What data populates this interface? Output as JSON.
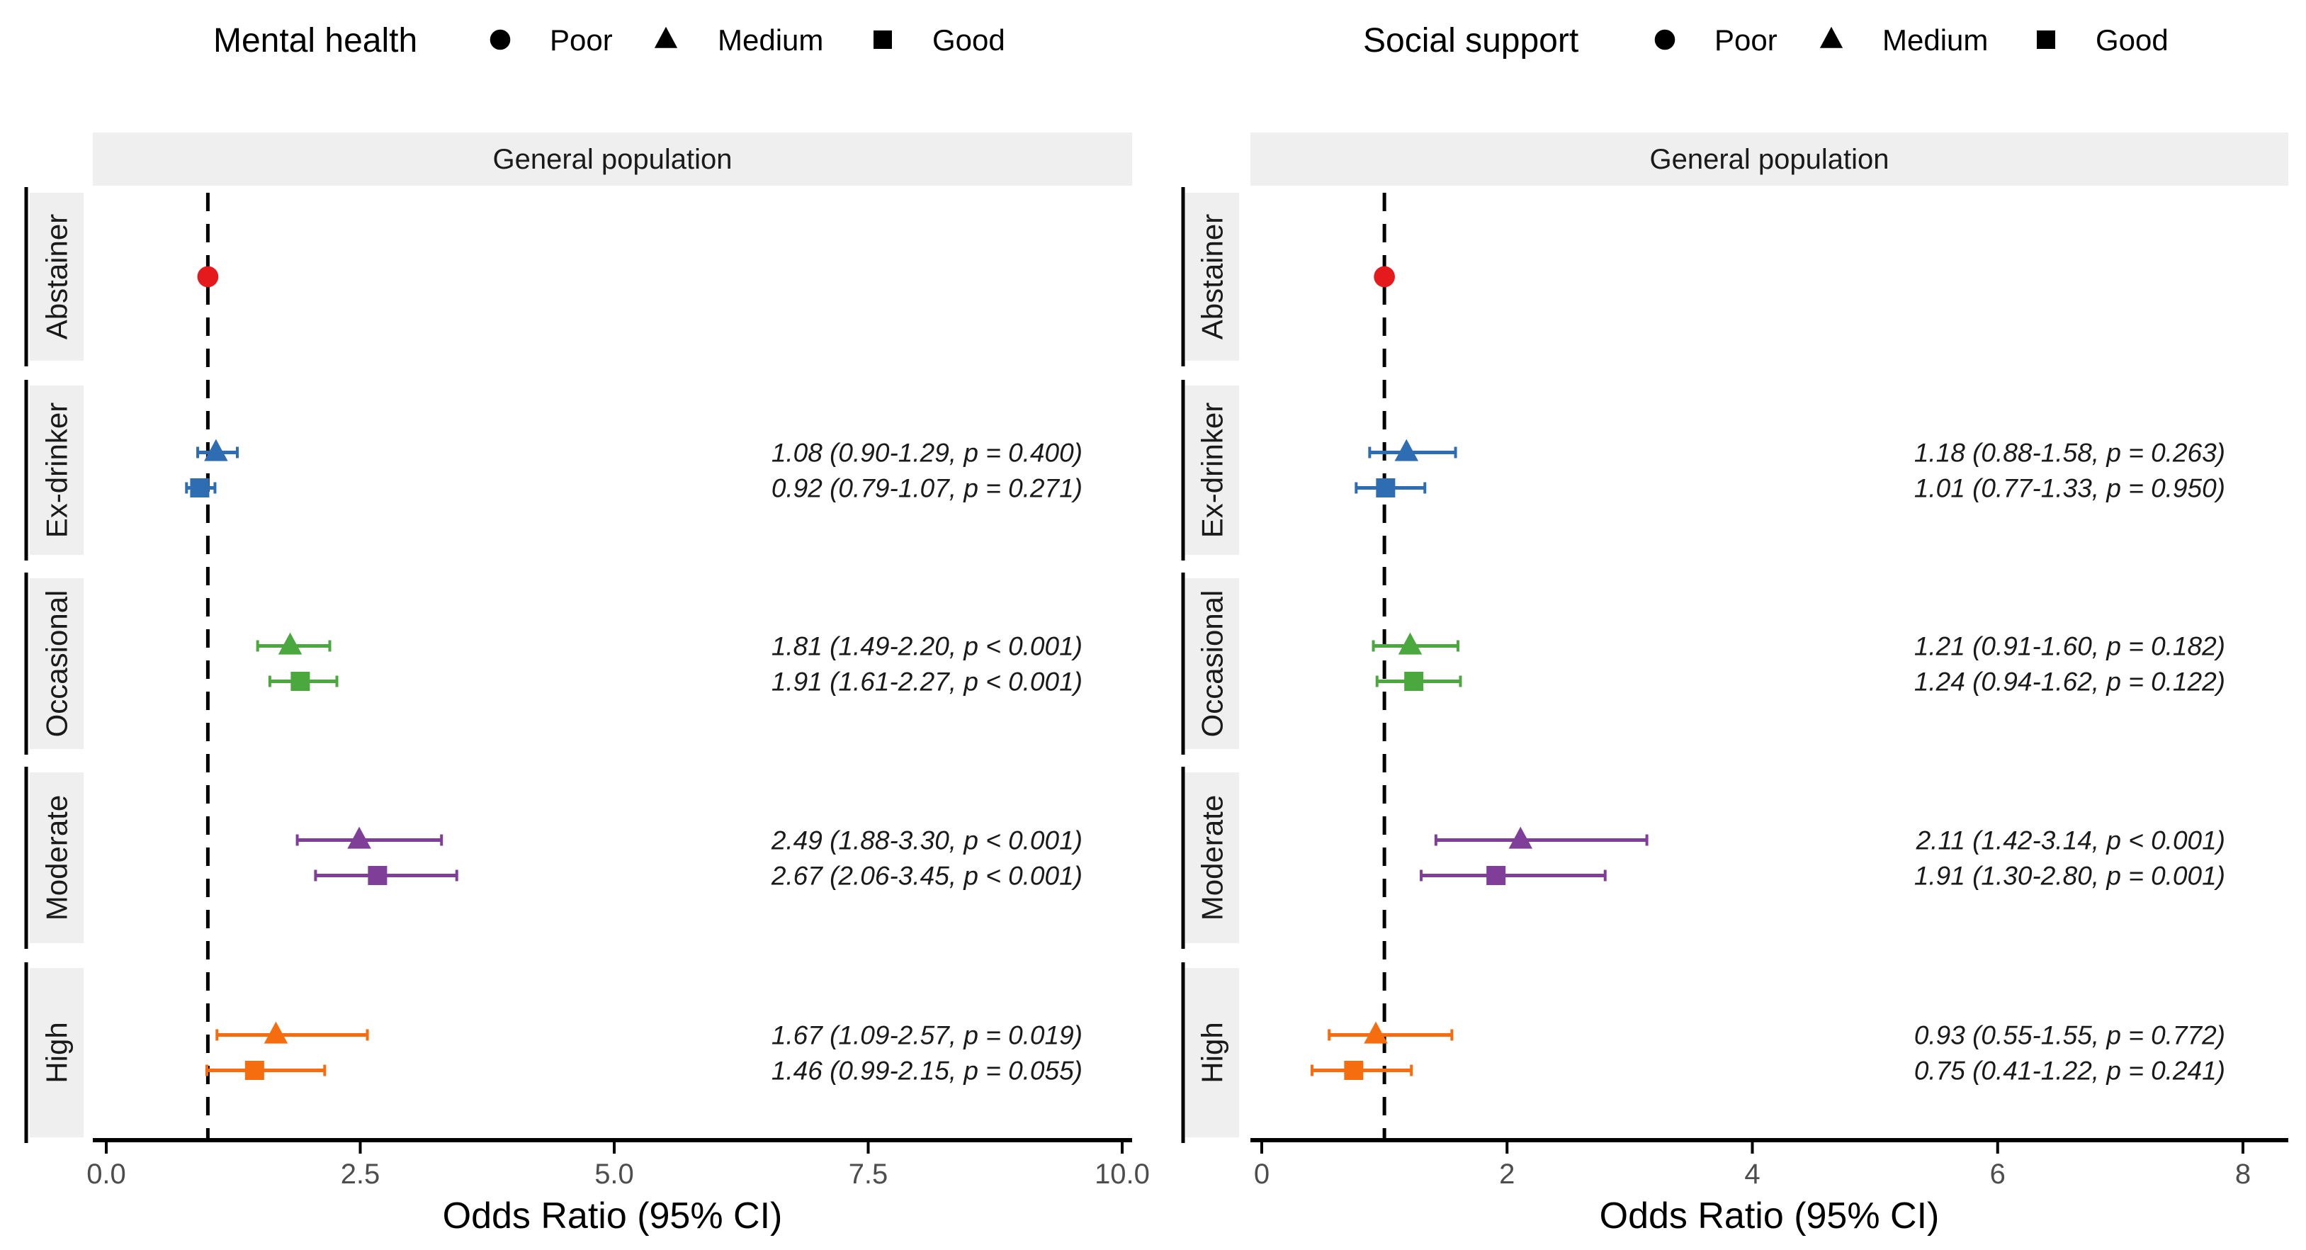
{
  "colors": {
    "Abstainer": "#e41a1c",
    "Ex-drinker": "#2f6db3",
    "Occasional": "#4aa83f",
    "Moderate": "#7f3f98",
    "High": "#f56d0f",
    "strip": "#efefef"
  },
  "chart_data": [
    {
      "type": "forest",
      "legend_title": "Mental health",
      "legend": [
        {
          "label": "Poor",
          "shape": "circle"
        },
        {
          "label": "Medium",
          "shape": "triangle"
        },
        {
          "label": "Good",
          "shape": "square"
        }
      ],
      "facet_label": "General population",
      "xlabel": "Odds Ratio (95% CI)",
      "xlim": [
        -0.1,
        10.1
      ],
      "xticks": [
        0,
        2.5,
        5,
        7.5,
        10
      ],
      "xtick_labels": [
        "0.0",
        "2.5",
        "5.0",
        "7.5",
        "10.0"
      ],
      "reference_line": 1,
      "groups": [
        {
          "name": "Abstainer",
          "points": [
            {
              "level": "Poor",
              "or": 1,
              "lo": 1,
              "hi": 1,
              "label": ""
            }
          ]
        },
        {
          "name": "Ex-drinker",
          "points": [
            {
              "level": "Medium",
              "or": 1.08,
              "lo": 0.9,
              "hi": 1.29,
              "label": "1.08 (0.90-1.29, p = 0.400)"
            },
            {
              "level": "Good",
              "or": 0.92,
              "lo": 0.79,
              "hi": 1.07,
              "label": "0.92 (0.79-1.07, p = 0.271)"
            }
          ]
        },
        {
          "name": "Occasional",
          "points": [
            {
              "level": "Medium",
              "or": 1.81,
              "lo": 1.49,
              "hi": 2.2,
              "label": "1.81 (1.49-2.20, p < 0.001)"
            },
            {
              "level": "Good",
              "or": 1.91,
              "lo": 1.61,
              "hi": 2.27,
              "label": "1.91 (1.61-2.27, p < 0.001)"
            }
          ]
        },
        {
          "name": "Moderate",
          "points": [
            {
              "level": "Medium",
              "or": 2.49,
              "lo": 1.88,
              "hi": 3.3,
              "label": "2.49 (1.88-3.30, p < 0.001)"
            },
            {
              "level": "Good",
              "or": 2.67,
              "lo": 2.06,
              "hi": 3.45,
              "label": "2.67 (2.06-3.45, p < 0.001)"
            }
          ]
        },
        {
          "name": "High",
          "points": [
            {
              "level": "Medium",
              "or": 1.67,
              "lo": 1.09,
              "hi": 2.57,
              "label": "1.67 (1.09-2.57, p = 0.019)"
            },
            {
              "level": "Good",
              "or": 1.46,
              "lo": 0.99,
              "hi": 2.15,
              "label": "1.46 (0.99-2.15, p = 0.055)"
            }
          ]
        }
      ]
    },
    {
      "type": "forest",
      "legend_title": "Social support",
      "legend": [
        {
          "label": "Poor",
          "shape": "circle"
        },
        {
          "label": "Medium",
          "shape": "triangle"
        },
        {
          "label": "Good",
          "shape": "square"
        }
      ],
      "facet_label": "General population",
      "xlabel": "Odds Ratio (95% CI)",
      "xlim": [
        -0.1,
        8.1
      ],
      "xticks": [
        0,
        2,
        4,
        6,
        8
      ],
      "xtick_labels": [
        "0",
        "2",
        "4",
        "6",
        "8"
      ],
      "reference_line": 1,
      "groups": [
        {
          "name": "Abstainer",
          "points": [
            {
              "level": "Poor",
              "or": 1,
              "lo": 1,
              "hi": 1,
              "label": ""
            }
          ]
        },
        {
          "name": "Ex-drinker",
          "points": [
            {
              "level": "Medium",
              "or": 1.18,
              "lo": 0.88,
              "hi": 1.58,
              "label": "1.18 (0.88-1.58, p = 0.263)"
            },
            {
              "level": "Good",
              "or": 1.01,
              "lo": 0.77,
              "hi": 1.33,
              "label": "1.01 (0.77-1.33, p = 0.950)"
            }
          ]
        },
        {
          "name": "Occasional",
          "points": [
            {
              "level": "Medium",
              "or": 1.21,
              "lo": 0.91,
              "hi": 1.6,
              "label": "1.21 (0.91-1.60, p = 0.182)"
            },
            {
              "level": "Good",
              "or": 1.24,
              "lo": 0.94,
              "hi": 1.62,
              "label": "1.24 (0.94-1.62, p = 0.122)"
            }
          ]
        },
        {
          "name": "Moderate",
          "points": [
            {
              "level": "Medium",
              "or": 2.11,
              "lo": 1.42,
              "hi": 3.14,
              "label": "2.11 (1.42-3.14, p < 0.001)"
            },
            {
              "level": "Good",
              "or": 1.91,
              "lo": 1.3,
              "hi": 2.8,
              "label": "1.91 (1.30-2.80, p = 0.001)"
            }
          ]
        },
        {
          "name": "High",
          "points": [
            {
              "level": "Medium",
              "or": 0.93,
              "lo": 0.55,
              "hi": 1.55,
              "label": "0.93 (0.55-1.55, p = 0.772)"
            },
            {
              "level": "Good",
              "or": 0.75,
              "lo": 0.41,
              "hi": 1.22,
              "label": "0.75 (0.41-1.22, p = 0.241)"
            }
          ]
        }
      ]
    }
  ]
}
